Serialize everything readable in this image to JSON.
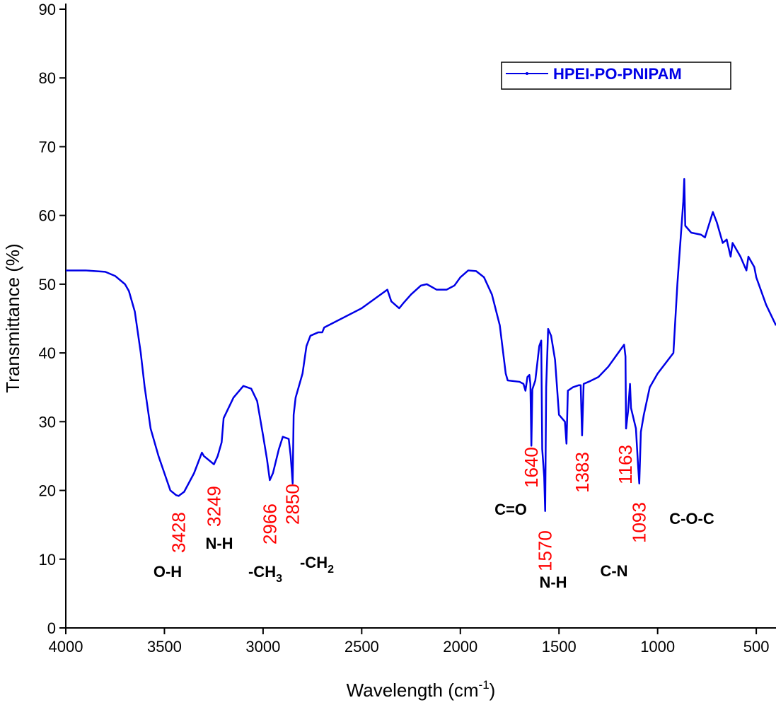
{
  "chart_data": {
    "type": "line",
    "xlabel": {
      "text": "Wavelength (cm",
      "sup": "-1",
      "tail": ")"
    },
    "ylabel": "Transmittance (%)",
    "xlim": [
      4000,
      400
    ],
    "ylim": [
      0,
      90
    ],
    "xticks": [
      4000,
      3500,
      3000,
      2500,
      2000,
      1500,
      1000,
      500
    ],
    "yticks": [
      0,
      10,
      20,
      30,
      40,
      50,
      60,
      70,
      80,
      90
    ],
    "x": [
      4000,
      3900,
      3800,
      3750,
      3700,
      3680,
      3650,
      3620,
      3600,
      3570,
      3530,
      3500,
      3470,
      3440,
      3428,
      3400,
      3350,
      3310,
      3300,
      3249,
      3230,
      3210,
      3200,
      3150,
      3100,
      3060,
      3030,
      3000,
      2980,
      2966,
      2950,
      2920,
      2900,
      2870,
      2860,
      2850,
      2845,
      2835,
      2820,
      2800,
      2780,
      2760,
      2720,
      2700,
      2690,
      2500,
      2370,
      2350,
      2310,
      2290,
      2250,
      2200,
      2170,
      2120,
      2070,
      2030,
      2000,
      1960,
      1920,
      1880,
      1840,
      1800,
      1770,
      1760,
      1700,
      1680,
      1670,
      1660,
      1650,
      1645,
      1640,
      1635,
      1620,
      1600,
      1590,
      1585,
      1575,
      1570,
      1565,
      1555,
      1540,
      1520,
      1500,
      1470,
      1462,
      1455,
      1430,
      1400,
      1390,
      1383,
      1375,
      1350,
      1300,
      1250,
      1200,
      1170,
      1163,
      1160,
      1150,
      1140,
      1135,
      1110,
      1100,
      1093,
      1085,
      1070,
      1040,
      1000,
      920,
      900,
      870,
      865,
      860,
      830,
      780,
      760,
      720,
      700,
      670,
      650,
      630,
      620,
      600,
      580,
      550,
      540,
      510,
      500,
      450,
      400
    ],
    "series": [
      {
        "name": "HPEI-PO-PNIPAM",
        "color": "#0000e6",
        "values": [
          52,
          52,
          51.8,
          51.2,
          50,
          49,
          46,
          40,
          35,
          29,
          25,
          22.5,
          20,
          19.3,
          19.2,
          19.8,
          22.5,
          25.5,
          25,
          23.8,
          25,
          27,
          30.5,
          33.5,
          35.2,
          34.8,
          33,
          28,
          24.5,
          21.5,
          22.5,
          26,
          27.8,
          27.5,
          25,
          21,
          31,
          33.5,
          35,
          37,
          41,
          42.5,
          43,
          43,
          43.7,
          46.5,
          49.2,
          47.5,
          46.5,
          47.2,
          48.5,
          49.8,
          50,
          49.2,
          49.2,
          49.8,
          51,
          52,
          51.9,
          51,
          48.5,
          44,
          37,
          36,
          35.8,
          35.5,
          34.5,
          36.5,
          36.8,
          35.5,
          26.5,
          34.7,
          36,
          41,
          41.8,
          26,
          22,
          17,
          35,
          43.5,
          42.5,
          39,
          31,
          30,
          26.8,
          34.5,
          35,
          35.3,
          35.3,
          28,
          35.5,
          35.8,
          36.5,
          38,
          40,
          41.2,
          39.5,
          29,
          31.5,
          35.5,
          32,
          29,
          24,
          21,
          28.5,
          31,
          35,
          37,
          40,
          50,
          62,
          65.3,
          58.5,
          57.5,
          57.2,
          56.8,
          60.5,
          59,
          56,
          56.5,
          54,
          56,
          55,
          54,
          52,
          54,
          52.5,
          51,
          47,
          44
        ]
      }
    ],
    "peak_labels": [
      3428,
      3249,
      2966,
      2850,
      1640,
      1570,
      1383,
      1163,
      1093
    ],
    "group_labels": [
      {
        "text": "O-H"
      },
      {
        "text": "N-H"
      },
      {
        "text": "-CH",
        "sub": "3"
      },
      {
        "text": "-CH",
        "sub": "2"
      },
      {
        "text": "C=O"
      },
      {
        "text": "N-H"
      },
      {
        "text": "C-N"
      },
      {
        "text": "C-O-C"
      }
    ],
    "legend": "top-right"
  }
}
